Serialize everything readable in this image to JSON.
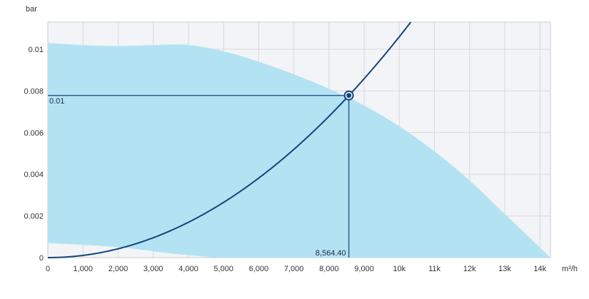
{
  "chart_data": {
    "type": "area",
    "xlabel": "m³/h",
    "ylabel": "bar",
    "xlim": [
      0,
      14300
    ],
    "ylim": [
      0,
      0.0113
    ],
    "x_ticks": [
      {
        "value": 0,
        "label": "0"
      },
      {
        "value": 1000,
        "label": "1,000"
      },
      {
        "value": 2000,
        "label": "2,000"
      },
      {
        "value": 3000,
        "label": "3,000"
      },
      {
        "value": 4000,
        "label": "4,000"
      },
      {
        "value": 5000,
        "label": "5,000"
      },
      {
        "value": 6000,
        "label": "6,000"
      },
      {
        "value": 7000,
        "label": "7,000"
      },
      {
        "value": 8000,
        "label": "8,000"
      },
      {
        "value": 9000,
        "label": "9,000"
      },
      {
        "value": 10000,
        "label": "10k"
      },
      {
        "value": 11000,
        "label": "11k"
      },
      {
        "value": 12000,
        "label": "12k"
      },
      {
        "value": 13000,
        "label": "13k"
      },
      {
        "value": 14000,
        "label": "14k"
      }
    ],
    "y_ticks": [
      {
        "value": 0,
        "label": "0"
      },
      {
        "value": 0.002,
        "label": "0.002"
      },
      {
        "value": 0.004,
        "label": "0.004"
      },
      {
        "value": 0.006,
        "label": "0.006"
      },
      {
        "value": 0.008,
        "label": "0.008"
      },
      {
        "value": 0.01,
        "label": "0.01"
      }
    ],
    "grid": true,
    "operating_range": {
      "upper": [
        [
          0,
          0.0103
        ],
        [
          1000,
          0.0102
        ],
        [
          2000,
          0.01015
        ],
        [
          3000,
          0.0102
        ],
        [
          4000,
          0.0102
        ],
        [
          5000,
          0.0099
        ],
        [
          6000,
          0.0094
        ],
        [
          7000,
          0.0088
        ],
        [
          8000,
          0.0081
        ],
        [
          9000,
          0.0073
        ],
        [
          10000,
          0.0063
        ],
        [
          11000,
          0.0051
        ],
        [
          12000,
          0.0037
        ],
        [
          13000,
          0.0021
        ],
        [
          14300,
          0
        ]
      ],
      "lower": [
        [
          0,
          0.0007
        ],
        [
          2000,
          0.0005
        ],
        [
          3500,
          0.0002
        ],
        [
          4800,
          0
        ]
      ]
    },
    "system_curve": {
      "k": 1.06e-10,
      "exponent": 2,
      "x_range": [
        0,
        10300
      ]
    },
    "operating_point": {
      "x": 8564.4,
      "y": 0.00778,
      "x_label": "8,564.40",
      "y_label": "0.01"
    },
    "colors": {
      "range_fill": "#b3e3f3",
      "curve": "#14447c",
      "plot_background": "#f3f4f7",
      "grid": "#d6d7dc",
      "operating_lines": "#2f5d94"
    }
  }
}
